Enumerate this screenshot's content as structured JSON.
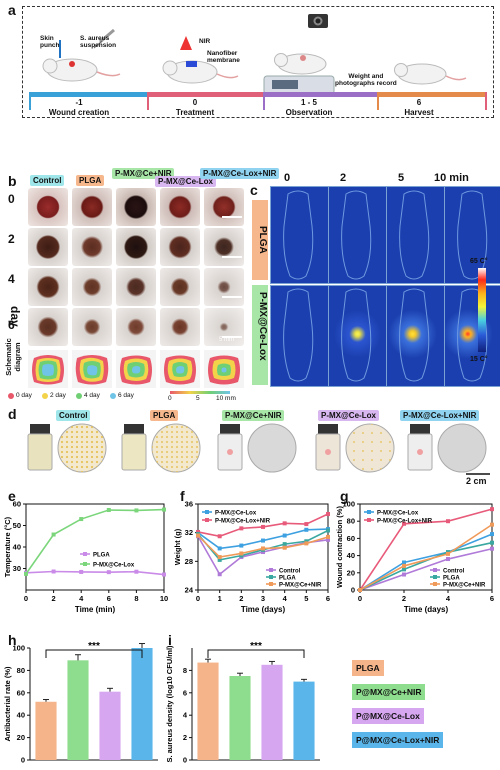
{
  "panel_a": {
    "label": "a",
    "steps": [
      {
        "label": "Skin\npunch"
      },
      {
        "label": "S. aureus\nsuspension"
      },
      {
        "label": "NIR"
      },
      {
        "label": "Nanofiber\nmembrane"
      },
      {
        "label": "Weight and\nphotographs record"
      }
    ],
    "timeline": [
      {
        "day": "-1",
        "caption": "Wound creation",
        "color": "#3aa0d8"
      },
      {
        "day": "0",
        "caption": "Treatment",
        "color": "#e0607a"
      },
      {
        "day": "1 - 5",
        "caption": "Observation",
        "color": "#9b6fc6"
      },
      {
        "day": "6",
        "caption": "Harvest",
        "color": "#e48a4a"
      }
    ]
  },
  "panel_b": {
    "label": "b",
    "groups": [
      {
        "name": "Control",
        "color": "#9fe6ea"
      },
      {
        "name": "PLGA",
        "color": "#f6b78c"
      },
      {
        "name": "P-MX@Ce+NIR",
        "color": "#a8e6a8"
      },
      {
        "name": "P-MX@Ce-Lox",
        "color": "#d8b6ef"
      },
      {
        "name": "P-MX@Ce-Lox+NIR",
        "color": "#8fd3f0"
      }
    ],
    "days": [
      "0",
      "2",
      "4",
      "6"
    ],
    "day_label": "day",
    "schematic_label": "Schematic\ndiagram",
    "scale_note": "5 mm",
    "legend": [
      {
        "label": "0 day",
        "color": "#e8586a"
      },
      {
        "label": "2 day",
        "color": "#f2d34a"
      },
      {
        "label": "4 day",
        "color": "#6fcf74"
      },
      {
        "label": "6 day",
        "color": "#6fc4e8"
      }
    ],
    "scale_ticks": [
      "0",
      "5",
      "10 mm"
    ]
  },
  "panel_c": {
    "label": "c",
    "times": [
      "0",
      "2",
      "5",
      "10 min"
    ],
    "rows": [
      {
        "name": "PLGA",
        "color": "#f6b78c",
        "hot": [
          false,
          false,
          false,
          false
        ]
      },
      {
        "name": "P-MX@Ce-Lox",
        "color": "#a8e6a8",
        "hot": [
          false,
          true,
          true,
          true
        ]
      }
    ],
    "colorbar_max": "65 C°",
    "colorbar_min": "15 C°"
  },
  "panel_d": {
    "label": "d",
    "groups": [
      {
        "name": "Control",
        "color": "#9fe6ea",
        "colonies": "many"
      },
      {
        "name": "PLGA",
        "color": "#f6b78c",
        "colonies": "many"
      },
      {
        "name": "P-MX@Ce+NIR",
        "color": "#a8e6a8",
        "colonies": "none"
      },
      {
        "name": "P-MX@Ce-Lox",
        "color": "#d8b6ef",
        "colonies": "few"
      },
      {
        "name": "P-MX@Ce-Lox+NIR",
        "color": "#8fd3f0",
        "colonies": "none"
      }
    ],
    "scale": "2 cm"
  },
  "chart_data": [
    {
      "id": "e",
      "type": "line",
      "xlabel": "Time (min)",
      "ylabel": "Temperature (°C)",
      "xlim": [
        0,
        10
      ],
      "ylim": [
        20,
        60
      ],
      "xticks": [
        0,
        2,
        4,
        6,
        8,
        10
      ],
      "yticks": [
        30,
        40,
        50,
        60
      ],
      "series": [
        {
          "name": "PLGA",
          "color": "#c98ae8",
          "x": [
            0,
            2,
            4,
            6,
            8,
            10
          ],
          "y": [
            28,
            28.6,
            28.4,
            28.3,
            28.5,
            27.2
          ]
        },
        {
          "name": "P-MX@Ce-Lox",
          "color": "#7bd67b",
          "x": [
            0,
            2,
            4,
            6,
            8,
            10
          ],
          "y": [
            27.5,
            45.8,
            53,
            57.2,
            57,
            57.4
          ]
        }
      ],
      "legend_position": "center-right"
    },
    {
      "id": "f",
      "type": "line",
      "xlabel": "Time (days)",
      "ylabel": "Weight (g)",
      "xlim": [
        0,
        6
      ],
      "ylim": [
        24,
        36
      ],
      "xticks": [
        0,
        1,
        2,
        3,
        4,
        5,
        6
      ],
      "yticks": [
        24,
        28,
        32,
        36
      ],
      "series": [
        {
          "name": "P-MX@Ce-Lox",
          "color": "#3da0e0",
          "x": [
            0,
            1,
            2,
            3,
            4,
            5,
            6
          ],
          "y": [
            32,
            29.8,
            30.2,
            30.9,
            31.6,
            32.4,
            32.5
          ]
        },
        {
          "name": "P-MX@Ce-Lox+NIR",
          "color": "#e85a7a",
          "x": [
            0,
            1,
            2,
            3,
            4,
            5,
            6
          ],
          "y": [
            32.1,
            31.5,
            32.6,
            32.8,
            33.3,
            33.2,
            34.6
          ]
        },
        {
          "name": "Control",
          "color": "#b07ad8",
          "x": [
            0,
            1,
            2,
            3,
            4,
            5,
            6
          ],
          "y": [
            31.5,
            26.2,
            28.6,
            29.3,
            30,
            30.6,
            31
          ]
        },
        {
          "name": "PLGA",
          "color": "#3aa8a0",
          "x": [
            0,
            1,
            2,
            3,
            4,
            5,
            6
          ],
          "y": [
            31.8,
            28.2,
            28.8,
            29.6,
            30.4,
            30.8,
            32.3
          ]
        },
        {
          "name": "P-MX@Ce+NIR",
          "color": "#f09a5a",
          "x": [
            0,
            1,
            2,
            3,
            4,
            5,
            6
          ],
          "y": [
            31.6,
            28.6,
            29.1,
            29.8,
            29.9,
            30.5,
            31.4
          ]
        }
      ],
      "legend_position": "top-left and bottom-right"
    },
    {
      "id": "g",
      "type": "line",
      "xlabel": "Time (days)",
      "ylabel": "Wound contraction (%)",
      "xlim": [
        0,
        6
      ],
      "ylim": [
        0,
        100
      ],
      "xticks": [
        0,
        2,
        4,
        6
      ],
      "yticks": [
        0,
        20,
        40,
        60,
        80,
        100
      ],
      "series": [
        {
          "name": "P-MX@Ce-Lox",
          "color": "#3da0e0",
          "x": [
            0,
            2,
            4,
            6
          ],
          "y": [
            0,
            32,
            44,
            65
          ]
        },
        {
          "name": "P-MX@Ce-Lox+NIR",
          "color": "#e85a7a",
          "x": [
            0,
            2,
            4,
            6
          ],
          "y": [
            0,
            77,
            80,
            94
          ]
        },
        {
          "name": "Control",
          "color": "#b07ad8",
          "x": [
            0,
            2,
            4,
            6
          ],
          "y": [
            0,
            18,
            36,
            48
          ]
        },
        {
          "name": "PLGA",
          "color": "#3aa8a0",
          "x": [
            0,
            2,
            4,
            6
          ],
          "y": [
            0,
            24,
            44,
            55
          ]
        },
        {
          "name": "P-MX@Ce+NIR",
          "color": "#f09a5a",
          "x": [
            0,
            2,
            4,
            6
          ],
          "y": [
            0,
            28,
            42,
            76
          ]
        }
      ],
      "legend_position": "top-left and bottom-right"
    },
    {
      "id": "h",
      "type": "bar",
      "ylabel": "Antibacterial rate (%)",
      "ylim": [
        0,
        100
      ],
      "yticks": [
        0,
        20,
        40,
        60,
        80,
        100
      ],
      "values": [
        52,
        89,
        61,
        100
      ],
      "errors": [
        2,
        5,
        3,
        4
      ],
      "colors": [
        "#f6b48a",
        "#8edc8e",
        "#d6a6f0",
        "#5ab6ea"
      ],
      "significance": "***"
    },
    {
      "id": "i",
      "type": "bar",
      "ylabel": "S. aureus density (log10 CFU/ml)",
      "ylim": [
        0,
        10
      ],
      "yticks": [
        0,
        2,
        4,
        6,
        8
      ],
      "values": [
        8.7,
        7.5,
        8.5,
        7.0
      ],
      "errors": [
        0.3,
        0.25,
        0.3,
        0.2
      ],
      "colors": [
        "#f6b48a",
        "#8edc8e",
        "#d6a6f0",
        "#5ab6ea"
      ],
      "significance": "***"
    }
  ],
  "bar_legend": [
    {
      "label": "PLGA",
      "color": "#f6b48a"
    },
    {
      "label": "P@MX@Ce+NIR",
      "color": "#8edc8e"
    },
    {
      "label": "P@MX@Ce-Lox",
      "color": "#d6a6f0"
    },
    {
      "label": "P@MX@Ce-Lox+NIR",
      "color": "#5ab6ea"
    }
  ],
  "panel_labels": {
    "e": "e",
    "f": "f",
    "g": "g",
    "h": "h",
    "i": "i"
  }
}
